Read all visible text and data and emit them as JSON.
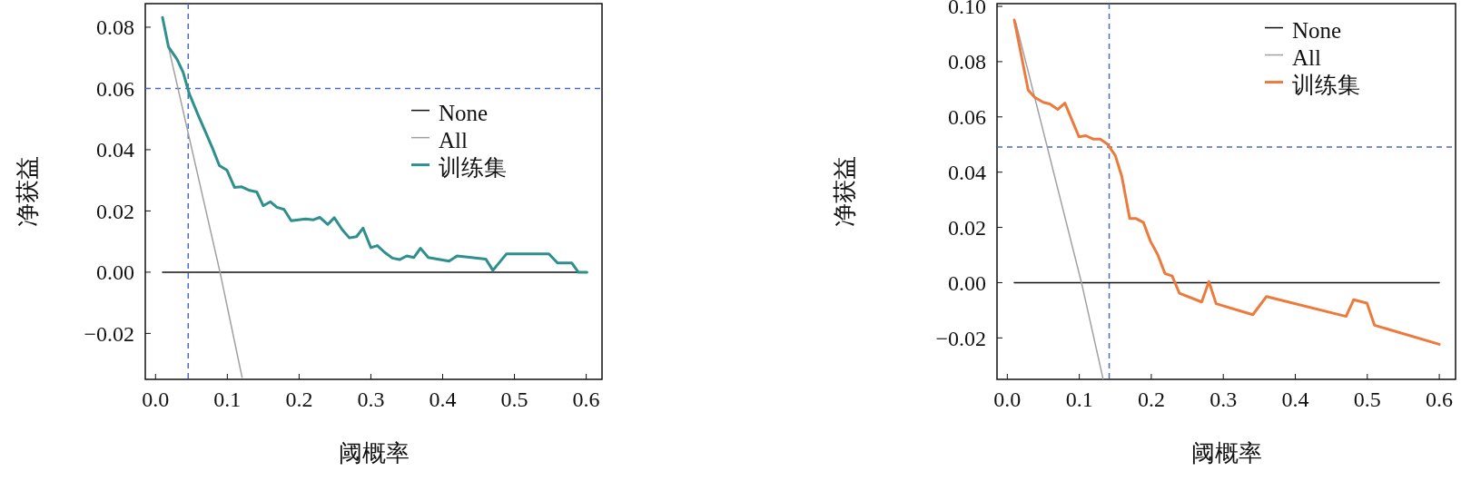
{
  "chart_data": [
    {
      "type": "line",
      "xlabel": "阈概率",
      "ylabel": "净获益",
      "legend": "right",
      "grid": false,
      "xlim": [
        -0.0143,
        0.622
      ],
      "ylim": [
        -0.035,
        0.0877
      ],
      "xticks": [
        {
          "value": 0,
          "label": "0.0"
        },
        {
          "value": 0.1,
          "label": "0.1"
        },
        {
          "value": 0.2,
          "label": "0.2"
        },
        {
          "value": 0.3,
          "label": "0.3"
        },
        {
          "value": 0.4,
          "label": "0.4"
        },
        {
          "value": 0.5,
          "label": "0.5"
        },
        {
          "value": 0.6,
          "label": "0.6"
        }
      ],
      "yticks": [
        {
          "value": -0.02,
          "label": "−0.02"
        },
        {
          "value": 0,
          "label": "0.00"
        },
        {
          "value": 0.02,
          "label": "0.02"
        },
        {
          "value": 0.04,
          "label": "0.04"
        },
        {
          "value": 0.06,
          "label": "0.06"
        },
        {
          "value": 0.08,
          "label": "0.08"
        }
      ],
      "ref_lines": [
        {
          "axis": "x",
          "value": 0.0455,
          "color": "#4a6cc0",
          "line_style": "dashed"
        },
        {
          "axis": "y",
          "value": 0.06,
          "color": "#4a6cc0",
          "line_style": "dashed"
        }
      ],
      "series": [
        {
          "name": "None",
          "color": "#111111",
          "x": [
            0.0097,
            0.601
          ],
          "values": [
            0,
            0
          ]
        },
        {
          "name": "All",
          "color": "#a0a0a0",
          "x": [
            0.018,
            0.0898,
            0.1205
          ],
          "values": [
            0.0736,
            0,
            -0.0343
          ]
        },
        {
          "name": "训练集",
          "color": "#2e8f8c",
          "x": [
            0.0097,
            0.018,
            0.03,
            0.0384,
            0.0468,
            0.059,
            0.07,
            0.079,
            0.089,
            0.0995,
            0.11,
            0.12,
            0.131,
            0.141,
            0.15,
            0.16,
            0.169,
            0.179,
            0.189,
            0.209,
            0.22,
            0.229,
            0.24,
            0.249,
            0.26,
            0.27,
            0.28,
            0.289,
            0.3,
            0.309,
            0.319,
            0.33,
            0.34,
            0.35,
            0.36,
            0.369,
            0.38,
            0.409,
            0.42,
            0.46,
            0.47,
            0.489,
            0.548,
            0.56,
            0.58,
            0.589,
            0.601
          ],
          "values": [
            0.0832,
            0.0736,
            0.0695,
            0.0653,
            0.0584,
            0.0515,
            0.0456,
            0.0407,
            0.0348,
            0.0333,
            0.0277,
            0.0279,
            0.0267,
            0.0262,
            0.0217,
            0.023,
            0.0212,
            0.0205,
            0.0168,
            0.0174,
            0.0171,
            0.0179,
            0.0156,
            0.0178,
            0.0139,
            0.0112,
            0.0116,
            0.0144,
            0.008,
            0.0087,
            0.0065,
            0.0046,
            0.0041,
            0.0053,
            0.0048,
            0.0078,
            0.0048,
            0.0036,
            0.0053,
            0.0043,
            0.0006,
            0.006,
            0.006,
            0.003,
            0.003,
            0,
            0
          ]
        }
      ]
    },
    {
      "type": "line",
      "xlabel": "阈概率",
      "ylabel": "净获益",
      "legend": "top right",
      "grid": false,
      "xlim": [
        -0.0143,
        0.6226
      ],
      "ylim": [
        -0.035,
        0.101
      ],
      "xticks": [
        {
          "value": 0,
          "label": "0.0"
        },
        {
          "value": 0.1,
          "label": "0.1"
        },
        {
          "value": 0.2,
          "label": "0.2"
        },
        {
          "value": 0.3,
          "label": "0.3"
        },
        {
          "value": 0.4,
          "label": "0.4"
        },
        {
          "value": 0.5,
          "label": "0.5"
        },
        {
          "value": 0.6,
          "label": "0.6"
        }
      ],
      "yticks": [
        {
          "value": -0.02,
          "label": "−0.02"
        },
        {
          "value": 0,
          "label": "0.00"
        },
        {
          "value": 0.02,
          "label": "0.02"
        },
        {
          "value": 0.04,
          "label": "0.04"
        },
        {
          "value": 0.06,
          "label": "0.06"
        },
        {
          "value": 0.08,
          "label": "0.08"
        },
        {
          "value": 0.1,
          "label": "0.10"
        }
      ],
      "ref_lines": [
        {
          "axis": "x",
          "value": 0.1415,
          "color": "#4a6cc0",
          "line_style": "dashed"
        },
        {
          "axis": "y",
          "value": 0.0491,
          "color": "#4a6cc0",
          "line_style": "dashed"
        }
      ],
      "series": [
        {
          "name": "None",
          "color": "#111111",
          "x": [
            0.0097,
            0.6
          ],
          "values": [
            0,
            0
          ]
        },
        {
          "name": "All",
          "color": "#a0a0a0",
          "x": [
            0.012,
            0.103,
            0.133
          ],
          "values": [
            0.094,
            0,
            -0.0348
          ]
        },
        {
          "name": "训练集",
          "color": "#ec7a3c",
          "x": [
            0.0097,
            0.029,
            0.038,
            0.05,
            0.059,
            0.07,
            0.08,
            0.089,
            0.0995,
            0.109,
            0.119,
            0.129,
            0.139,
            0.15,
            0.159,
            0.17,
            0.179,
            0.189,
            0.199,
            0.209,
            0.219,
            0.229,
            0.239,
            0.27,
            0.28,
            0.29,
            0.341,
            0.36,
            0.4705,
            0.481,
            0.4995,
            0.51,
            0.6
          ],
          "values": [
            0.0951,
            0.0697,
            0.0671,
            0.0653,
            0.0647,
            0.0627,
            0.065,
            0.0594,
            0.0528,
            0.0532,
            0.052,
            0.052,
            0.0502,
            0.046,
            0.0385,
            0.0232,
            0.0232,
            0.0218,
            0.0149,
            0.0101,
            0.0033,
            0.0024,
            -0.0038,
            -0.007,
            0.0004,
            -0.0076,
            -0.0116,
            -0.005,
            -0.0122,
            -0.0062,
            -0.0074,
            -0.0154,
            -0.0223
          ]
        }
      ]
    }
  ]
}
